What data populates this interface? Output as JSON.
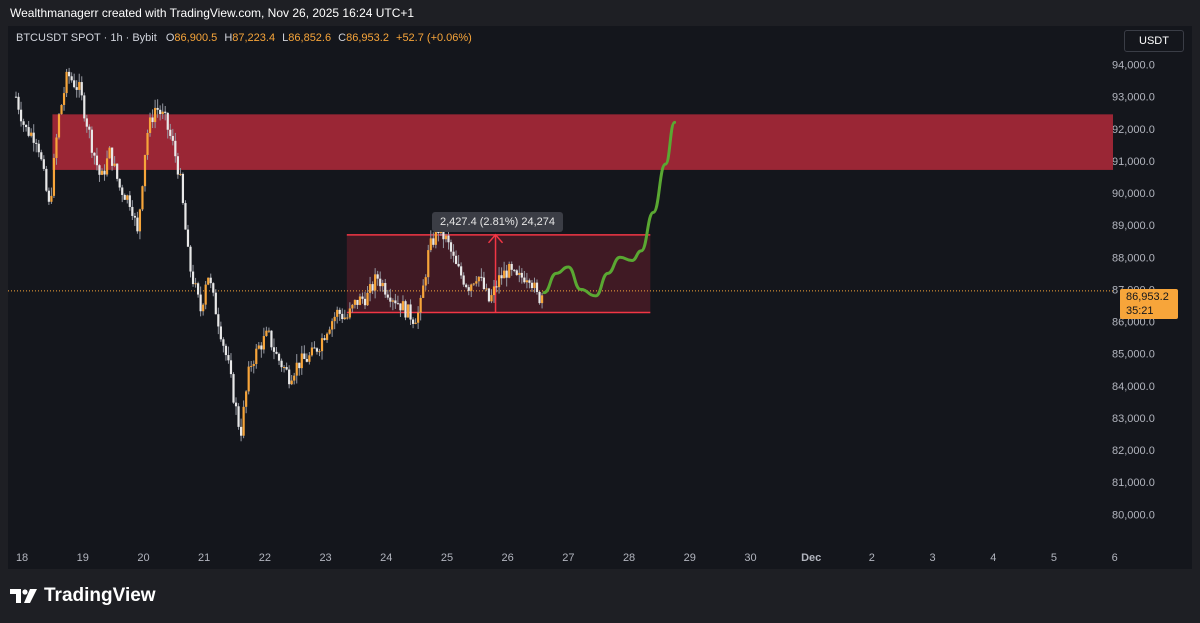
{
  "header": {
    "credit": "Wealthmanagerr created with TradingView.com, Nov 26, 2025 16:24 UTC+1"
  },
  "legend": {
    "symbol": "BTCUSDT SPOT · 1h · Bybit",
    "o_label": "O",
    "o_value": "86,900.5",
    "h_label": "H",
    "h_value": "87,223.4",
    "l_label": "L",
    "l_value": "86,852.6",
    "c_label": "C",
    "c_value": "86,953.2",
    "change": "+52.7 (+0.06%)"
  },
  "currency_button": "USDT",
  "current_price": {
    "value": "86,953.2",
    "countdown": "35:21"
  },
  "measure_label": "2,427.4 (2.81%) 24,274",
  "footer": {
    "logo_text": "TradingView"
  },
  "colors": {
    "background": "#14161c",
    "candle": "#f7a53a",
    "wick": "#9598a1",
    "zone_red": "#b2293a",
    "box_border": "#f23645",
    "projection": "#5aa832",
    "current_price": "#f7a53a"
  },
  "chart_data": {
    "type": "candlestick",
    "y_axis": {
      "ticks": [
        "94,000.0",
        "93,000.0",
        "92,000.0",
        "91,000.0",
        "90,000.0",
        "89,000.0",
        "88,000.0",
        "87,000.0",
        "86,000.0",
        "85,000.0",
        "84,000.0",
        "83,000.0",
        "82,000.0",
        "81,000.0",
        "80,000.0"
      ],
      "range": [
        79200,
        95200
      ]
    },
    "x_axis": {
      "ticks": [
        "18",
        "19",
        "20",
        "21",
        "22",
        "23",
        "24",
        "25",
        "26",
        "27",
        "28",
        "29",
        "30",
        "Dec",
        "2",
        "3",
        "4",
        "5",
        "6"
      ]
    },
    "price_path": [
      [
        17.9,
        93000
      ],
      [
        18.05,
        92000
      ],
      [
        18.25,
        91700
      ],
      [
        18.45,
        89500
      ],
      [
        18.6,
        92300
      ],
      [
        18.75,
        93700
      ],
      [
        18.95,
        93200
      ],
      [
        19.15,
        91500
      ],
      [
        19.3,
        90400
      ],
      [
        19.45,
        91300
      ],
      [
        19.6,
        90200
      ],
      [
        19.8,
        89700
      ],
      [
        19.9,
        88700
      ],
      [
        20.05,
        91800
      ],
      [
        20.2,
        92700
      ],
      [
        20.35,
        92300
      ],
      [
        20.5,
        91400
      ],
      [
        20.6,
        90500
      ],
      [
        20.75,
        87800
      ],
      [
        20.95,
        86300
      ],
      [
        21.05,
        87600
      ],
      [
        21.15,
        86700
      ],
      [
        21.25,
        85900
      ],
      [
        21.4,
        84600
      ],
      [
        21.5,
        83500
      ],
      [
        21.6,
        82500
      ],
      [
        21.75,
        84600
      ],
      [
        21.9,
        85200
      ],
      [
        22.05,
        85600
      ],
      [
        22.2,
        84900
      ],
      [
        22.4,
        84300
      ],
      [
        22.55,
        84700
      ],
      [
        22.75,
        84900
      ],
      [
        22.9,
        85300
      ],
      [
        23.05,
        85900
      ],
      [
        23.2,
        86300
      ],
      [
        23.35,
        86100
      ],
      [
        23.5,
        86600
      ],
      [
        23.7,
        86800
      ],
      [
        23.85,
        87400
      ],
      [
        24.0,
        87000
      ],
      [
        24.15,
        86700
      ],
      [
        24.3,
        86400
      ],
      [
        24.45,
        86100
      ],
      [
        24.55,
        86300
      ],
      [
        24.7,
        88200
      ],
      [
        24.85,
        88900
      ],
      [
        25.0,
        88500
      ],
      [
        25.15,
        87700
      ],
      [
        25.35,
        87100
      ],
      [
        25.5,
        87500
      ],
      [
        25.7,
        86600
      ],
      [
        25.85,
        87300
      ],
      [
        26.0,
        87600
      ],
      [
        26.15,
        87300
      ],
      [
        26.35,
        87500
      ],
      [
        26.5,
        86700
      ],
      [
        26.6,
        86950
      ]
    ],
    "supply_zone": {
      "top": 92450,
      "bottom": 90720
    },
    "range_box": {
      "x_start": 23.35,
      "x_end": 28.35,
      "top": 88700,
      "bottom": 86280
    },
    "measure_arrow": {
      "x": 25.8,
      "from": 86280,
      "to": 88700
    },
    "projection": [
      [
        26.6,
        86900
      ],
      [
        26.8,
        87500
      ],
      [
        27.0,
        87700
      ],
      [
        27.2,
        87000
      ],
      [
        27.45,
        86800
      ],
      [
        27.65,
        87500
      ],
      [
        27.85,
        88000
      ],
      [
        28.05,
        87900
      ],
      [
        28.2,
        88200
      ],
      [
        28.4,
        89400
      ],
      [
        28.6,
        90900
      ],
      [
        28.75,
        92200
      ]
    ],
    "current_price_line": 86953.2
  }
}
